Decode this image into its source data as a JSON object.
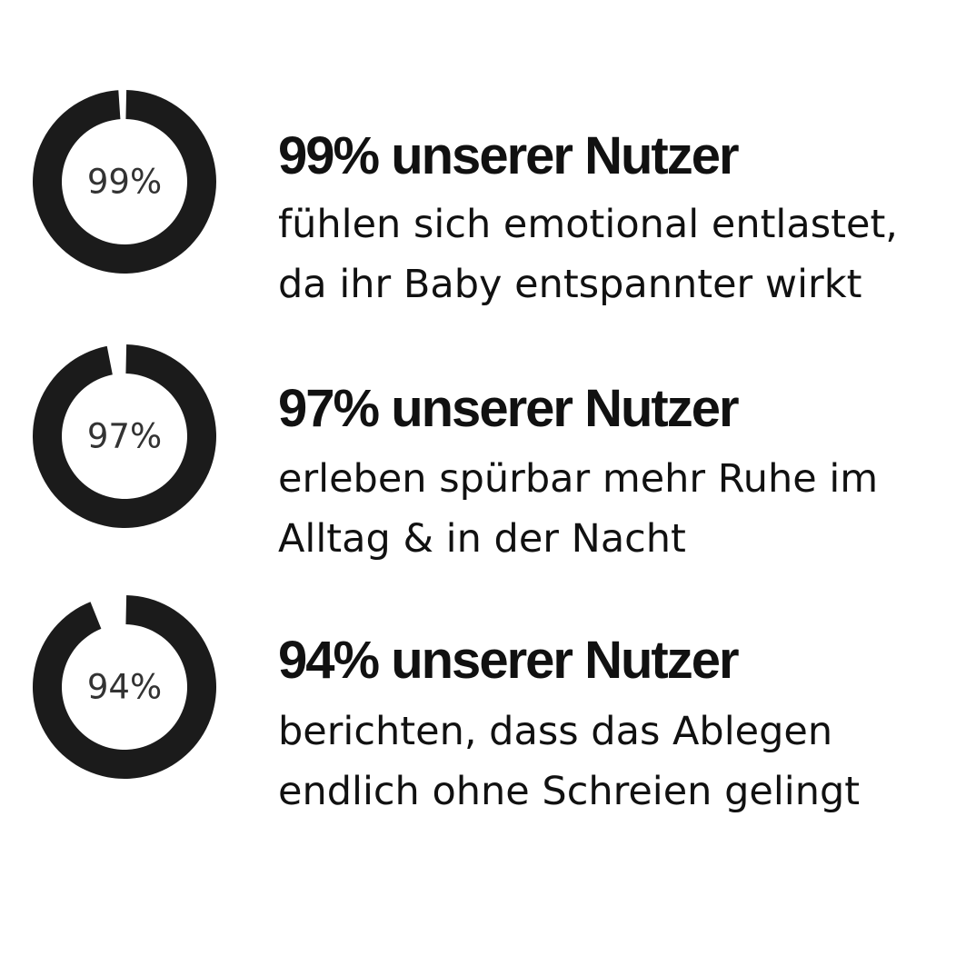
{
  "colors": {
    "ring": "#1b1b1b",
    "gap": "#ffffff",
    "text": "#111111",
    "percent_label": "#333333"
  },
  "chart_data": [
    {
      "type": "pie",
      "variant": "donut",
      "value": 99,
      "max": 100,
      "label": "99%"
    },
    {
      "type": "pie",
      "variant": "donut",
      "value": 97,
      "max": 100,
      "label": "97%"
    },
    {
      "type": "pie",
      "variant": "donut",
      "value": 94,
      "max": 100,
      "label": "94%"
    }
  ],
  "stats": [
    {
      "headline": "99% unserer Nutzer",
      "line1": "fühlen sich emotional entlastet,",
      "line2": "da ihr Baby entspannter wirkt"
    },
    {
      "headline": "97% unserer Nutzer",
      "line1": "erleben spürbar mehr Ruhe im",
      "line2": "Alltag & in der Nacht"
    },
    {
      "headline": "94% unserer Nutzer",
      "line1": "berichten, dass das Ablegen",
      "line2": "endlich ohne Schreien gelingt"
    }
  ]
}
